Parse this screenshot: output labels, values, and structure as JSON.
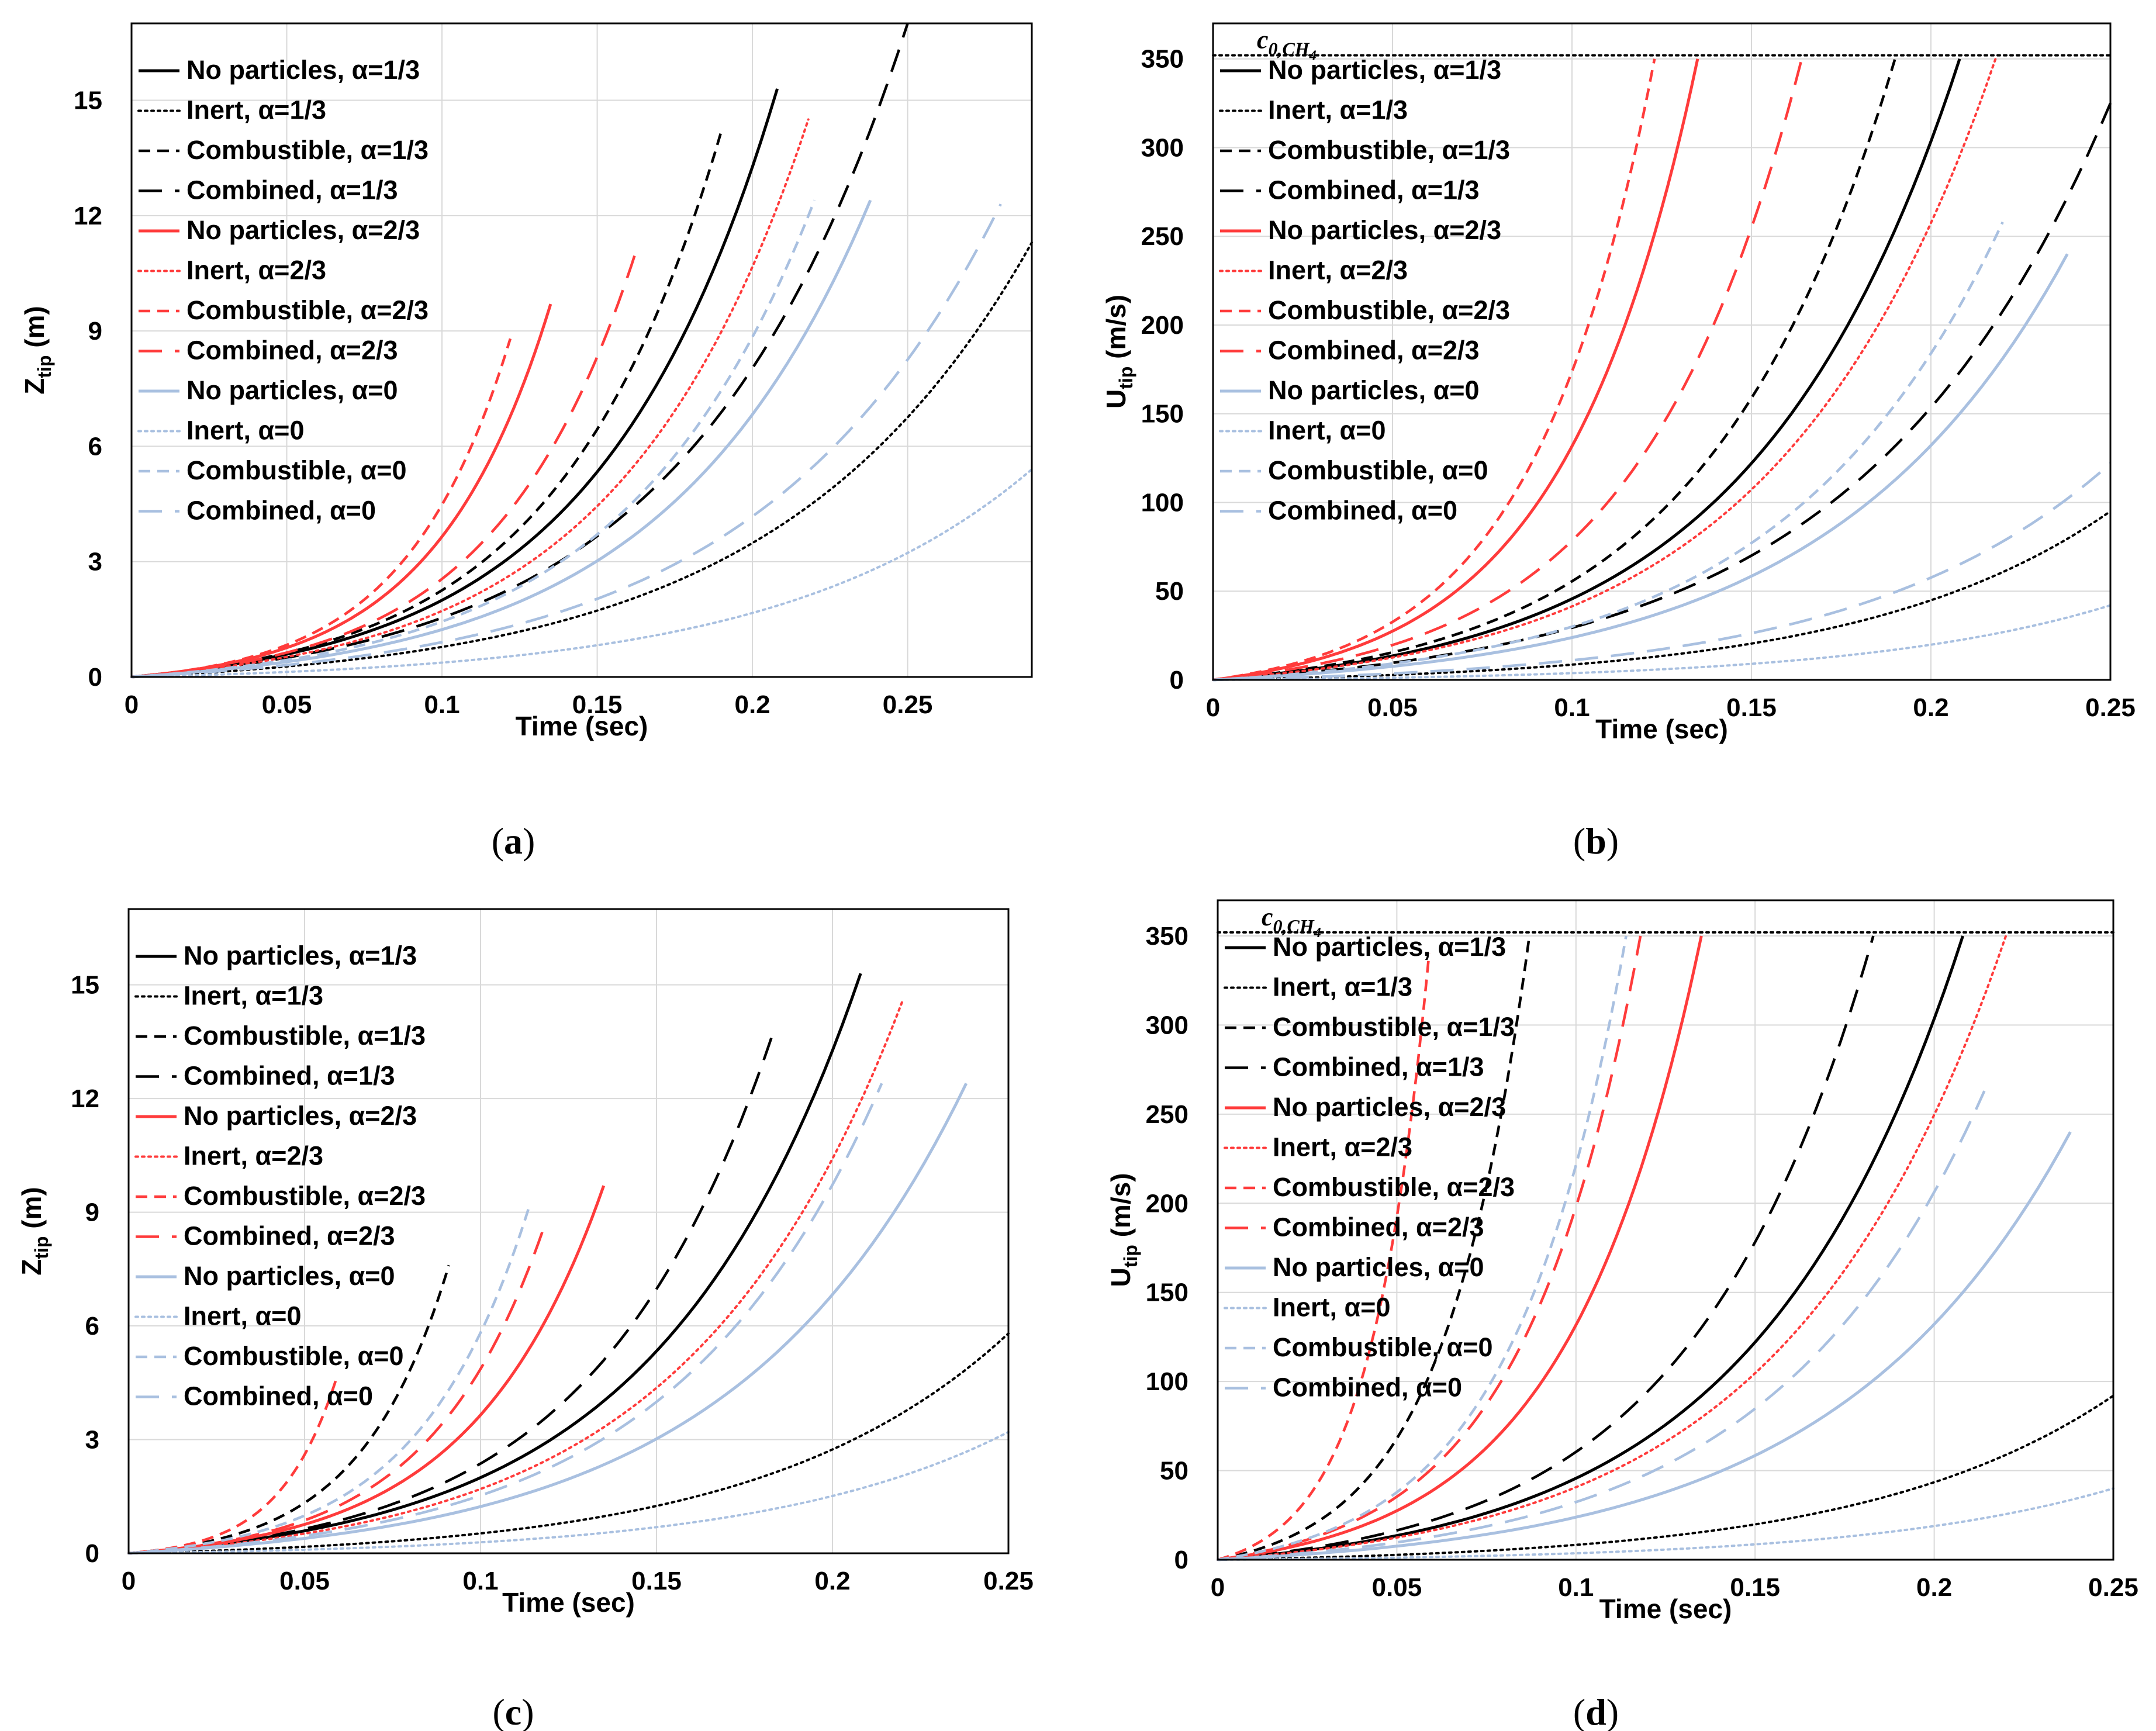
{
  "figure": {
    "panels_ids": [
      "a",
      "b",
      "c",
      "d"
    ]
  },
  "series_styles": {
    "colors": {
      "black": "#000000",
      "red": "#ff3b3b",
      "blue": "#a9c0e0"
    },
    "line_types": [
      "solid",
      "dotted",
      "dashed-short",
      "dashed-long"
    ]
  },
  "chart_data": [
    {
      "id": "a",
      "type": "line",
      "caption": "a",
      "xlabel": "Time (sec)",
      "ylabel": "Z",
      "ylabel_sub": "tip",
      "ylabel_unit": " (m)",
      "xlim": [
        0,
        0.29
      ],
      "ylim": [
        0,
        17
      ],
      "xticks": [
        0,
        0.05,
        0.1,
        0.15,
        0.2,
        0.25
      ],
      "xtick_labels": [
        "0",
        "0.05",
        "0.1",
        "0.15",
        "0.2",
        "0.25"
      ],
      "yticks": [
        0,
        3,
        6,
        9,
        12,
        15
      ],
      "ytick_labels": [
        "0",
        "3",
        "6",
        "9",
        "12",
        "15"
      ],
      "grid": true,
      "legend": "top-left",
      "series": [
        {
          "name": "No particles, α=1/3",
          "color": "black",
          "style": "solid",
          "t_end": 0.208,
          "y_end": 15.3
        },
        {
          "name": "Inert, α=1/3",
          "color": "black",
          "style": "dotted",
          "t_end": 0.29,
          "y_end": 11.3
        },
        {
          "name": "Combustible, α=1/3",
          "color": "black",
          "style": "dashed-short",
          "t_end": 0.19,
          "y_end": 14.2
        },
        {
          "name": "Combined, α=1/3",
          "color": "black",
          "style": "dashed-long",
          "t_end": 0.25,
          "y_end": 17.0
        },
        {
          "name": "No particles, α=2/3",
          "color": "red",
          "style": "solid",
          "t_end": 0.135,
          "y_end": 9.7
        },
        {
          "name": "Inert, α=2/3",
          "color": "red",
          "style": "dotted",
          "t_end": 0.218,
          "y_end": 14.5
        },
        {
          "name": "Combustible, α=2/3",
          "color": "red",
          "style": "dashed-short",
          "t_end": 0.122,
          "y_end": 8.8
        },
        {
          "name": "Combined, α=2/3",
          "color": "red",
          "style": "dashed-long",
          "t_end": 0.163,
          "y_end": 11.2
        },
        {
          "name": "No particles, α=0",
          "color": "blue",
          "style": "solid",
          "t_end": 0.238,
          "y_end": 12.4
        },
        {
          "name": "Inert, α=0",
          "color": "blue",
          "style": "dotted",
          "t_end": 0.29,
          "y_end": 5.4
        },
        {
          "name": "Combustible, α=0",
          "color": "blue",
          "style": "dashed-short",
          "t_end": 0.22,
          "y_end": 12.4
        },
        {
          "name": "Combined, α=0",
          "color": "blue",
          "style": "dashed-long",
          "t_end": 0.28,
          "y_end": 12.3
        }
      ]
    },
    {
      "id": "b",
      "type": "line",
      "caption": "b",
      "xlabel": "Time (sec)",
      "ylabel": "U",
      "ylabel_sub": "tip",
      "ylabel_unit": " (m/s)",
      "xlim": [
        0,
        0.25
      ],
      "ylim": [
        0,
        370
      ],
      "xticks": [
        0,
        0.05,
        0.1,
        0.15,
        0.2,
        0.25
      ],
      "xtick_labels": [
        "0",
        "0.05",
        "0.1",
        "0.15",
        "0.2",
        "0.25"
      ],
      "yticks": [
        0,
        50,
        100,
        150,
        200,
        250,
        300,
        350
      ],
      "ytick_labels": [
        "0",
        "50",
        "100",
        "150",
        "200",
        "250",
        "300",
        "350"
      ],
      "grid": true,
      "legend": "top-left",
      "reference_line": {
        "value": 352,
        "label": "c",
        "label_sub": "0,CH",
        "label_sub2": "4"
      },
      "series": [
        {
          "name": "No particles, α=1/3",
          "color": "black",
          "style": "solid",
          "t_end": 0.208,
          "y_end": 350
        },
        {
          "name": "Inert, α=1/3",
          "color": "black",
          "style": "dotted",
          "t_end": 0.25,
          "y_end": 95
        },
        {
          "name": "Combustible, α=1/3",
          "color": "black",
          "style": "dashed-short",
          "t_end": 0.19,
          "y_end": 350
        },
        {
          "name": "Combined, α=1/3",
          "color": "black",
          "style": "dashed-long",
          "t_end": 0.25,
          "y_end": 325
        },
        {
          "name": "No particles, α=2/3",
          "color": "red",
          "style": "solid",
          "t_end": 0.135,
          "y_end": 350
        },
        {
          "name": "Inert, α=2/3",
          "color": "red",
          "style": "dotted",
          "t_end": 0.218,
          "y_end": 350
        },
        {
          "name": "Combustible, α=2/3",
          "color": "red",
          "style": "dashed-short",
          "t_end": 0.123,
          "y_end": 350
        },
        {
          "name": "Combined, α=2/3",
          "color": "red",
          "style": "dashed-long",
          "t_end": 0.164,
          "y_end": 350
        },
        {
          "name": "No particles, α=0",
          "color": "blue",
          "style": "solid",
          "t_end": 0.238,
          "y_end": 240
        },
        {
          "name": "Inert, α=0",
          "color": "blue",
          "style": "dotted",
          "t_end": 0.25,
          "y_end": 42
        },
        {
          "name": "Combustible, α=0",
          "color": "blue",
          "style": "dashed-short",
          "t_end": 0.22,
          "y_end": 258
        },
        {
          "name": "Combined, α=0",
          "color": "blue",
          "style": "dashed-long",
          "t_end": 0.25,
          "y_end": 122
        }
      ]
    },
    {
      "id": "c",
      "type": "line",
      "caption": "c",
      "xlabel": "Time (sec)",
      "ylabel": "Z",
      "ylabel_sub": "tip",
      "ylabel_unit": " (m)",
      "xlim": [
        0,
        0.25
      ],
      "ylim": [
        0,
        17
      ],
      "xticks": [
        0,
        0.05,
        0.1,
        0.15,
        0.2,
        0.25
      ],
      "xtick_labels": [
        "0",
        "0.05",
        "0.1",
        "0.15",
        "0.2",
        "0.25"
      ],
      "yticks": [
        0,
        3,
        6,
        9,
        12,
        15
      ],
      "ytick_labels": [
        "0",
        "3",
        "6",
        "9",
        "12",
        "15"
      ],
      "grid": true,
      "legend": "top-left",
      "series": [
        {
          "name": "No particles, α=1/3",
          "color": "black",
          "style": "solid",
          "t_end": 0.208,
          "y_end": 15.3
        },
        {
          "name": "Inert, α=1/3",
          "color": "black",
          "style": "dotted",
          "t_end": 0.25,
          "y_end": 5.8
        },
        {
          "name": "Combustible, α=1/3",
          "color": "black",
          "style": "dashed-short",
          "t_end": 0.091,
          "y_end": 7.6
        },
        {
          "name": "Combined, α=1/3",
          "color": "black",
          "style": "dashed-long",
          "t_end": 0.183,
          "y_end": 13.7
        },
        {
          "name": "No particles, α=2/3",
          "color": "red",
          "style": "solid",
          "t_end": 0.135,
          "y_end": 9.7
        },
        {
          "name": "Inert, α=2/3",
          "color": "red",
          "style": "dotted",
          "t_end": 0.22,
          "y_end": 14.6
        },
        {
          "name": "Combustible, α=2/3",
          "color": "red",
          "style": "dashed-short",
          "t_end": 0.059,
          "y_end": 4.6
        },
        {
          "name": "Combined, α=2/3",
          "color": "red",
          "style": "dashed-long",
          "t_end": 0.118,
          "y_end": 8.6
        },
        {
          "name": "No particles, α=0",
          "color": "blue",
          "style": "solid",
          "t_end": 0.238,
          "y_end": 12.4
        },
        {
          "name": "Inert, α=0",
          "color": "blue",
          "style": "dotted",
          "t_end": 0.25,
          "y_end": 3.2
        },
        {
          "name": "Combustible, α=0",
          "color": "blue",
          "style": "dashed-short",
          "t_end": 0.114,
          "y_end": 9.2
        },
        {
          "name": "Combined, α=0",
          "color": "blue",
          "style": "dashed-long",
          "t_end": 0.214,
          "y_end": 12.4
        }
      ]
    },
    {
      "id": "d",
      "type": "line",
      "caption": "d",
      "xlabel": "Time (sec)",
      "ylabel": "U",
      "ylabel_sub": "tip",
      "ylabel_unit": " (m/s)",
      "xlim": [
        0,
        0.25
      ],
      "ylim": [
        0,
        370
      ],
      "xticks": [
        0,
        0.05,
        0.1,
        0.15,
        0.2,
        0.25
      ],
      "xtick_labels": [
        "0",
        "0.05",
        "0.1",
        "0.15",
        "0.2",
        "0.25"
      ],
      "yticks": [
        0,
        50,
        100,
        150,
        200,
        250,
        300,
        350
      ],
      "ytick_labels": [
        "0",
        "50",
        "100",
        "150",
        "200",
        "250",
        "300",
        "350"
      ],
      "grid": true,
      "legend": "top-left",
      "reference_line": {
        "value": 352,
        "label": "c",
        "label_sub": "0,CH",
        "label_sub2": "4"
      },
      "series": [
        {
          "name": "No particles, α=1/3",
          "color": "black",
          "style": "solid",
          "t_end": 0.208,
          "y_end": 350
        },
        {
          "name": "Inert, α=1/3",
          "color": "black",
          "style": "dotted",
          "t_end": 0.25,
          "y_end": 92
        },
        {
          "name": "Combustible, α=1/3",
          "color": "black",
          "style": "dashed-short",
          "t_end": 0.087,
          "y_end": 350
        },
        {
          "name": "Combined, α=1/3",
          "color": "black",
          "style": "dashed-long",
          "t_end": 0.183,
          "y_end": 350
        },
        {
          "name": "No particles, α=2/3",
          "color": "red",
          "style": "solid",
          "t_end": 0.135,
          "y_end": 350
        },
        {
          "name": "Inert, α=2/3",
          "color": "red",
          "style": "dotted",
          "t_end": 0.22,
          "y_end": 350
        },
        {
          "name": "Combustible, α=2/3",
          "color": "red",
          "style": "dashed-short",
          "t_end": 0.059,
          "y_end": 340
        },
        {
          "name": "Combined, α=2/3",
          "color": "red",
          "style": "dashed-long",
          "t_end": 0.118,
          "y_end": 350
        },
        {
          "name": "No particles, α=0",
          "color": "blue",
          "style": "solid",
          "t_end": 0.238,
          "y_end": 240
        },
        {
          "name": "Inert, α=0",
          "color": "blue",
          "style": "dotted",
          "t_end": 0.25,
          "y_end": 40
        },
        {
          "name": "Combustible, α=0",
          "color": "blue",
          "style": "dashed-short",
          "t_end": 0.114,
          "y_end": 350
        },
        {
          "name": "Combined, α=0",
          "color": "blue",
          "style": "dashed-long",
          "t_end": 0.214,
          "y_end": 263
        }
      ]
    }
  ]
}
